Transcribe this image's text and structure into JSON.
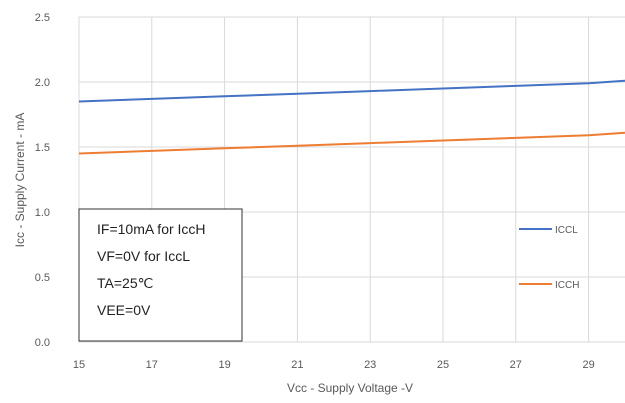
{
  "chart_data": {
    "type": "line",
    "xlabel": "Vcc - Supply Voltage -V",
    "ylabel": "Icc - Supply Current - mA",
    "xlim": [
      15,
      30
    ],
    "ylim": [
      0,
      2.5
    ],
    "x_ticks": [
      15,
      17,
      19,
      21,
      23,
      25,
      27,
      29
    ],
    "y_ticks": [
      "0.0",
      "0.5",
      "1.0",
      "1.5",
      "2.0",
      "2.5"
    ],
    "grid": true,
    "legend_position": "right",
    "series": [
      {
        "name": "ICCL",
        "color": "#4472C4",
        "x": [
          15,
          17,
          19,
          21,
          23,
          25,
          27,
          29,
          30
        ],
        "y": [
          1.85,
          1.87,
          1.89,
          1.91,
          1.93,
          1.95,
          1.97,
          1.99,
          2.01
        ]
      },
      {
        "name": "ICCH",
        "color": "#ED7D31",
        "x": [
          15,
          17,
          19,
          21,
          23,
          25,
          27,
          29,
          30
        ],
        "y": [
          1.45,
          1.47,
          1.49,
          1.51,
          1.53,
          1.55,
          1.57,
          1.59,
          1.61
        ]
      }
    ],
    "annotation": {
      "lines": [
        "IF=10mA for IccH",
        "VF=0V for IccL",
        "TA=25℃",
        "VEE=0V"
      ]
    }
  }
}
